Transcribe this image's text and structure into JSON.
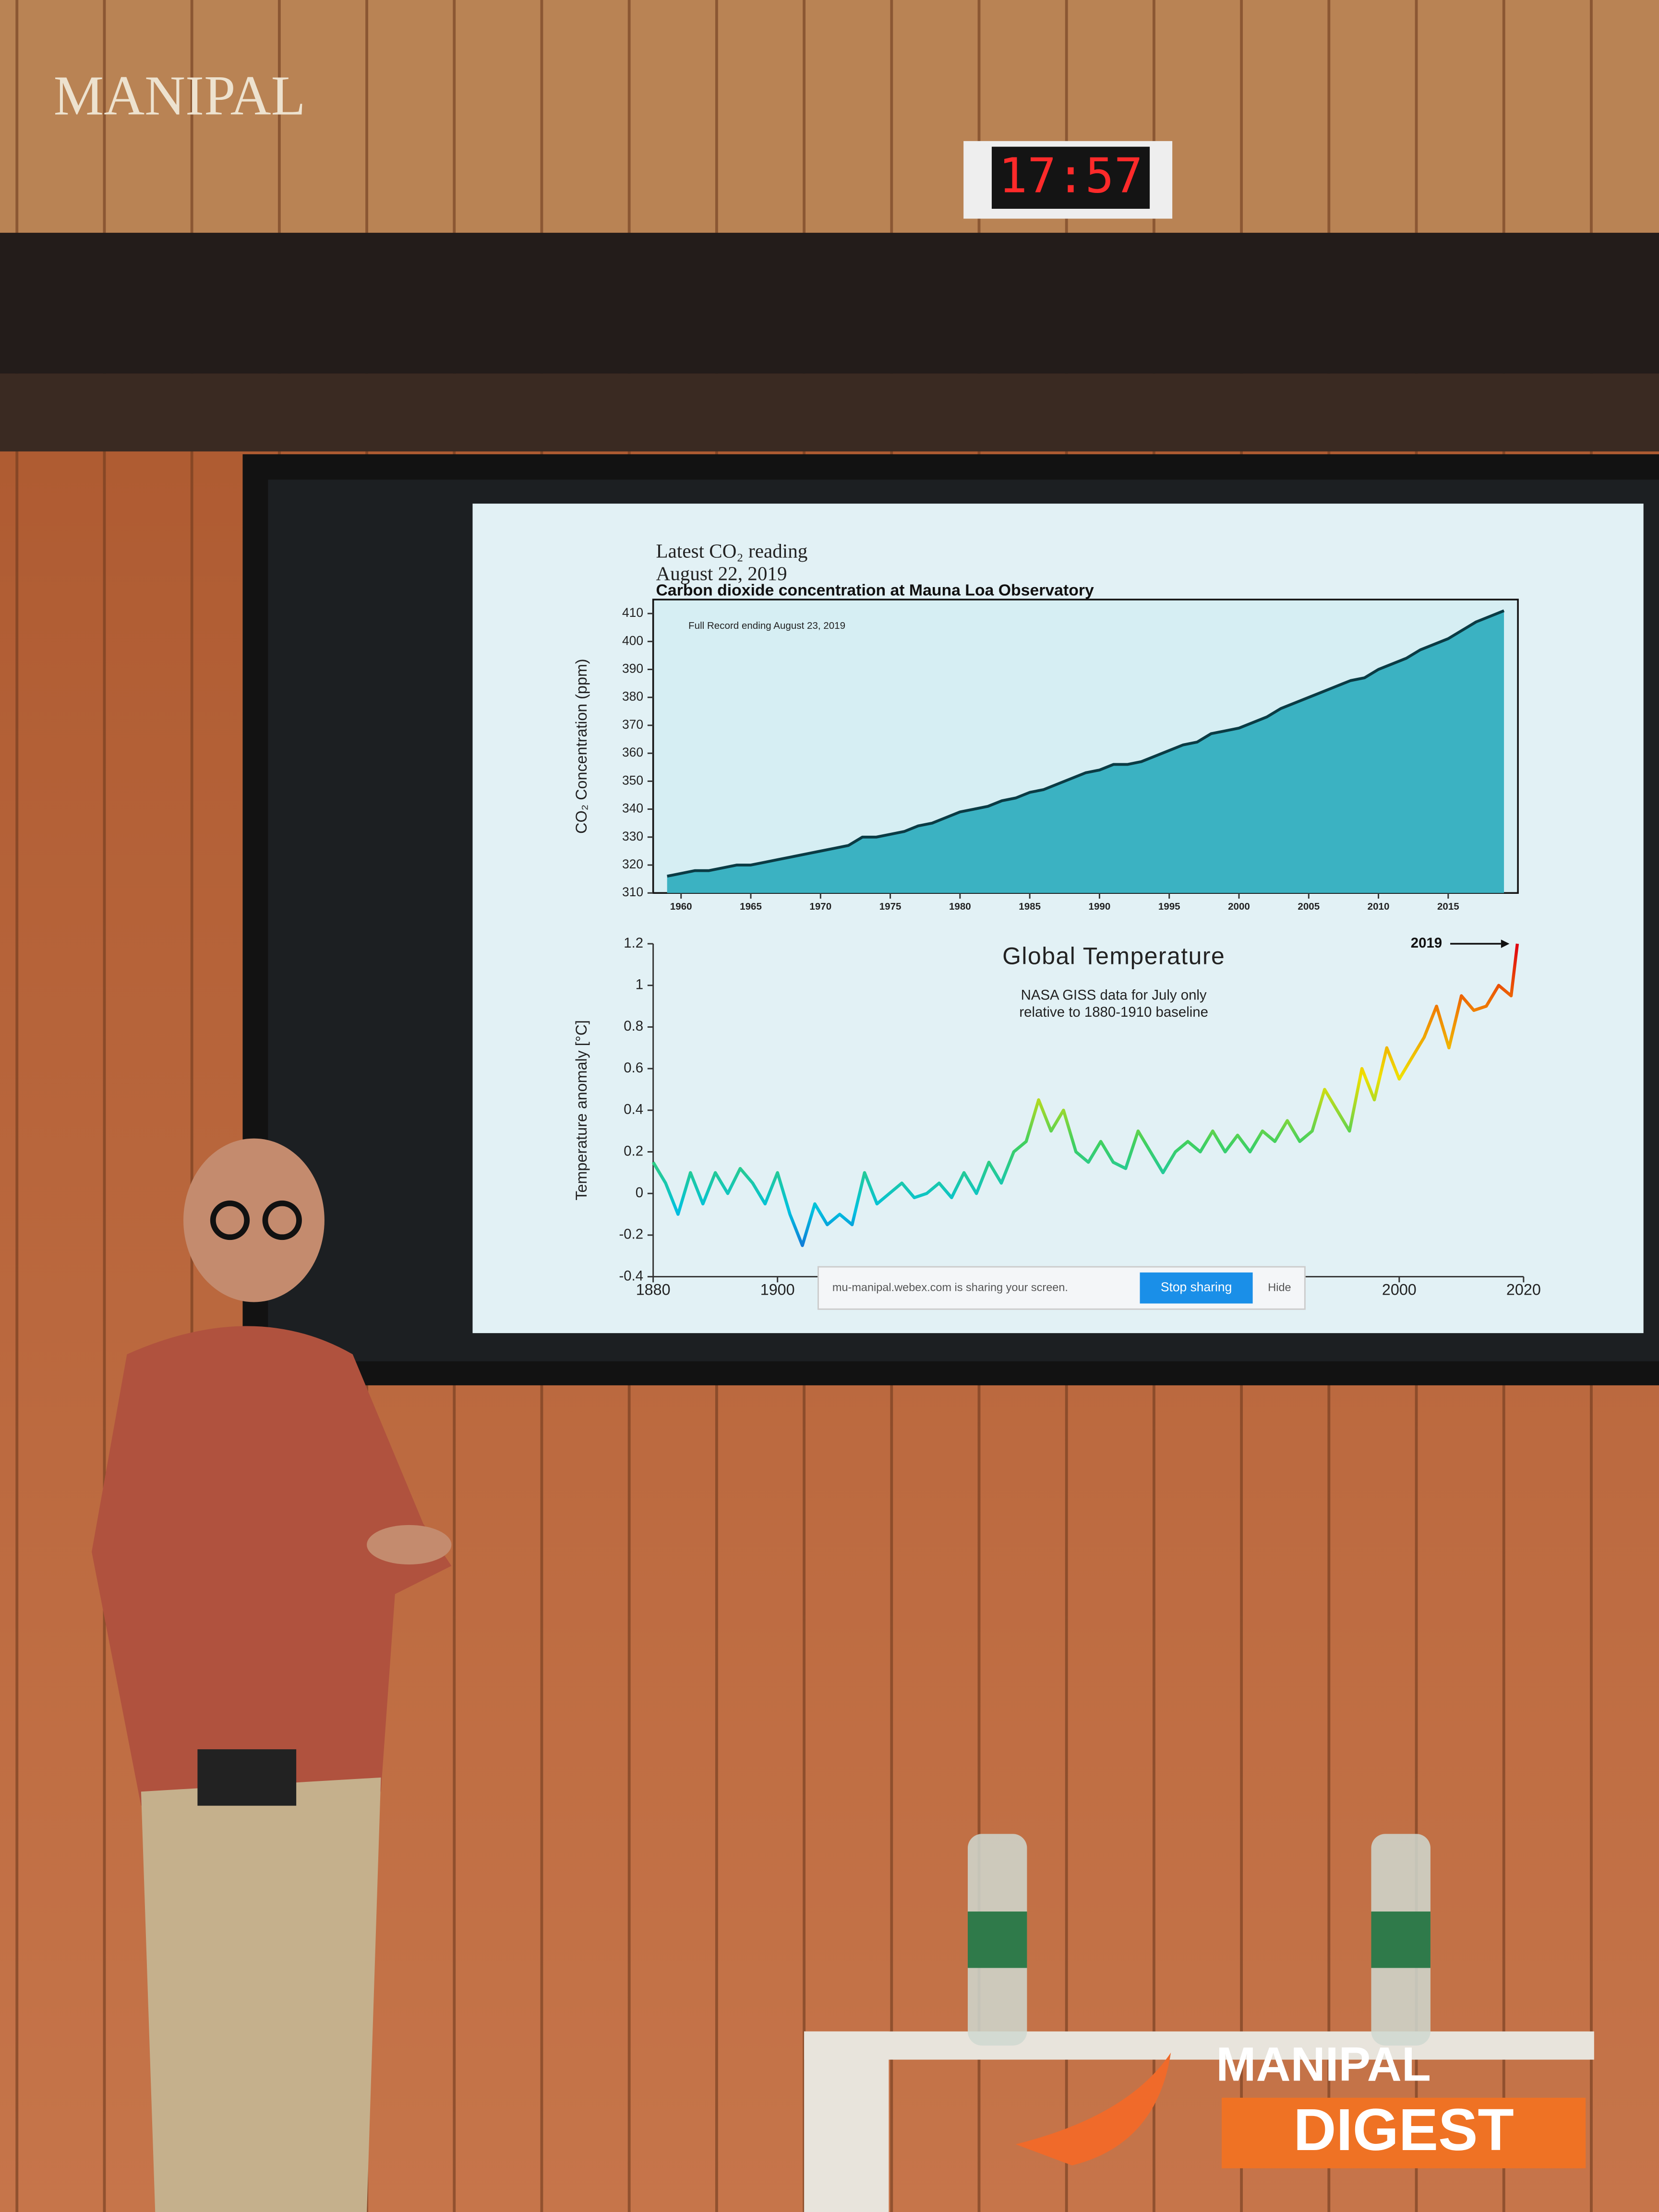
{
  "scene": {
    "sign": "MANIPAL",
    "clock": "17:57"
  },
  "slide": {
    "heading": [
      "Latest CO₂ reading",
      "August 22, 2019"
    ]
  },
  "chart_data": [
    {
      "type": "line",
      "title": "Carbon dioxide concentration at Mauna Loa Observatory",
      "subtitle": "Full Record ending August 23, 2019",
      "ylabel": "CO₂ Concentration (ppm)",
      "x": [
        1959,
        1960,
        1961,
        1962,
        1963,
        1964,
        1965,
        1966,
        1967,
        1968,
        1969,
        1970,
        1971,
        1972,
        1973,
        1974,
        1975,
        1976,
        1977,
        1978,
        1979,
        1980,
        1981,
        1982,
        1983,
        1984,
        1985,
        1986,
        1987,
        1988,
        1989,
        1990,
        1991,
        1992,
        1993,
        1994,
        1995,
        1996,
        1997,
        1998,
        1999,
        2000,
        2001,
        2002,
        2003,
        2004,
        2005,
        2006,
        2007,
        2008,
        2009,
        2010,
        2011,
        2012,
        2013,
        2014,
        2015,
        2016,
        2017,
        2018,
        2019
      ],
      "series": [
        {
          "color": "#0b3b44",
          "values": [
            316,
            317,
            318,
            318,
            319,
            320,
            320,
            321,
            322,
            323,
            324,
            325,
            326,
            327,
            330,
            330,
            331,
            332,
            334,
            335,
            337,
            339,
            340,
            341,
            343,
            344,
            346,
            347,
            349,
            351,
            353,
            354,
            356,
            356,
            357,
            359,
            361,
            363,
            364,
            367,
            368,
            369,
            371,
            373,
            376,
            378,
            380,
            382,
            384,
            386,
            387,
            390,
            392,
            394,
            397,
            399,
            401,
            404,
            407,
            409,
            411
          ]
        }
      ],
      "fill": "#3bb2c2",
      "xlim": [
        1958,
        2020
      ],
      "ylim": [
        310,
        415
      ],
      "xticks": [
        1960,
        1965,
        1970,
        1975,
        1980,
        1985,
        1990,
        1995,
        2000,
        2005,
        2010,
        2015
      ],
      "yticks": [
        310,
        320,
        330,
        340,
        350,
        360,
        370,
        380,
        390,
        400,
        410
      ]
    },
    {
      "type": "line",
      "title": "Global Temperature",
      "annotations": [
        "NASA GISS data for July only",
        "relative to 1880-1910 baseline",
        "2019"
      ],
      "ylabel": "Temperature anomaly [°C]",
      "x": [
        1880,
        1882,
        1884,
        1886,
        1888,
        1890,
        1892,
        1894,
        1896,
        1898,
        1900,
        1902,
        1904,
        1906,
        1908,
        1910,
        1912,
        1914,
        1916,
        1918,
        1920,
        1922,
        1924,
        1926,
        1928,
        1930,
        1932,
        1934,
        1936,
        1938,
        1940,
        1942,
        1944,
        1946,
        1948,
        1950,
        1952,
        1954,
        1956,
        1958,
        1960,
        1962,
        1964,
        1966,
        1968,
        1970,
        1972,
        1974,
        1976,
        1978,
        1980,
        1982,
        1984,
        1986,
        1988,
        1990,
        1992,
        1994,
        1996,
        1998,
        2000,
        2002,
        2004,
        2006,
        2008,
        2010,
        2012,
        2014,
        2016,
        2018,
        2019
      ],
      "series": [
        {
          "values": [
            0.15,
            0.05,
            -0.1,
            0.1,
            -0.05,
            0.1,
            0.0,
            0.12,
            0.05,
            -0.05,
            0.1,
            -0.1,
            -0.25,
            -0.05,
            -0.15,
            -0.1,
            -0.15,
            0.1,
            -0.05,
            0.0,
            0.05,
            -0.02,
            0.0,
            0.05,
            -0.02,
            0.1,
            0.0,
            0.15,
            0.05,
            0.2,
            0.25,
            0.45,
            0.3,
            0.4,
            0.2,
            0.15,
            0.25,
            0.15,
            0.12,
            0.3,
            0.2,
            0.1,
            0.2,
            0.25,
            0.2,
            0.3,
            0.2,
            0.28,
            0.2,
            0.3,
            0.25,
            0.35,
            0.25,
            0.3,
            0.5,
            0.4,
            0.3,
            0.6,
            0.45,
            0.7,
            0.55,
            0.65,
            0.75,
            0.9,
            0.7,
            0.95,
            0.88,
            0.9,
            1.0,
            0.95,
            1.2
          ]
        }
      ],
      "colormap": [
        "#1f3fd0",
        "#00c2e0",
        "#40d060",
        "#f0e000",
        "#f08000",
        "#e00010"
      ],
      "xlim": [
        1880,
        2020
      ],
      "ylim": [
        -0.4,
        1.2
      ],
      "xticks": [
        1880,
        1900,
        2000,
        2020
      ],
      "yticks": [
        -0.4,
        -0.2,
        0,
        0.2,
        0.4,
        0.6,
        0.8,
        1,
        1.2
      ]
    }
  ],
  "share_bar": {
    "message": "mu-manipal.webex.com is sharing your screen.",
    "button": "Stop sharing",
    "hide": "Hide"
  },
  "logo": {
    "line1": "MANIPAL",
    "line2": "DIGEST"
  }
}
